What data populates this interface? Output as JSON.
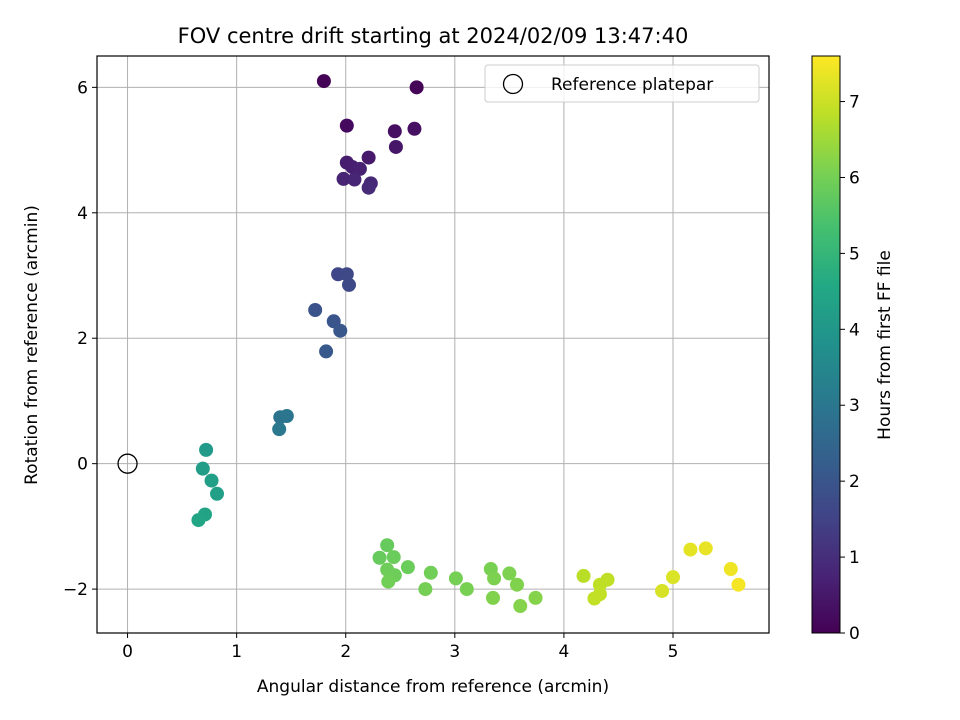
{
  "chart_data": {
    "type": "scatter",
    "title": "FOV centre drift starting at 2024/02/09 13:47:40",
    "xlabel": "Angular distance from reference (arcmin)",
    "ylabel": "Rotation from reference (arcmin)",
    "xlim": [
      -0.28,
      5.88
    ],
    "ylim": [
      -2.7,
      6.5
    ],
    "x_ticks": [
      0,
      1,
      2,
      3,
      4,
      5
    ],
    "y_ticks": [
      -2,
      0,
      2,
      4,
      6
    ],
    "x_tick_labels": [
      "0",
      "1",
      "2",
      "3",
      "4",
      "5"
    ],
    "y_tick_labels": [
      "−2",
      "0",
      "2",
      "4",
      "6"
    ],
    "grid": true,
    "legend_position": "top-right",
    "legend": [
      {
        "label": "Reference platepar",
        "marker": "open-circle"
      }
    ],
    "reference_point": {
      "x": 0,
      "y": 0
    },
    "colorbar": {
      "label": "Hours from first FF file",
      "colormap": "viridis",
      "range": [
        0,
        7.6
      ],
      "ticks": [
        0,
        1,
        2,
        3,
        4,
        5,
        6,
        7
      ],
      "tick_labels": [
        "0",
        "1",
        "2",
        "3",
        "4",
        "5",
        "6",
        "7"
      ]
    },
    "points": [
      {
        "x": 1.8,
        "y": 6.1,
        "t": 0.05
      },
      {
        "x": 2.65,
        "y": 6.0,
        "t": 0.1
      },
      {
        "x": 2.01,
        "y": 5.39,
        "t": 0.2
      },
      {
        "x": 2.45,
        "y": 5.3,
        "t": 0.3
      },
      {
        "x": 2.63,
        "y": 5.34,
        "t": 0.35
      },
      {
        "x": 2.46,
        "y": 5.05,
        "t": 0.45
      },
      {
        "x": 2.21,
        "y": 4.88,
        "t": 0.55
      },
      {
        "x": 2.01,
        "y": 4.8,
        "t": 0.6
      },
      {
        "x": 2.06,
        "y": 4.73,
        "t": 0.65
      },
      {
        "x": 2.13,
        "y": 4.7,
        "t": 0.7
      },
      {
        "x": 1.98,
        "y": 4.54,
        "t": 0.75
      },
      {
        "x": 2.08,
        "y": 4.53,
        "t": 0.8
      },
      {
        "x": 2.23,
        "y": 4.47,
        "t": 0.85
      },
      {
        "x": 2.21,
        "y": 4.4,
        "t": 0.9
      },
      {
        "x": 1.93,
        "y": 3.02,
        "t": 1.6
      },
      {
        "x": 2.01,
        "y": 3.02,
        "t": 1.65
      },
      {
        "x": 2.03,
        "y": 2.85,
        "t": 1.7
      },
      {
        "x": 1.72,
        "y": 2.45,
        "t": 1.95
      },
      {
        "x": 1.89,
        "y": 2.27,
        "t": 2.0
      },
      {
        "x": 1.95,
        "y": 2.12,
        "t": 2.05
      },
      {
        "x": 1.82,
        "y": 1.79,
        "t": 2.1
      },
      {
        "x": 1.4,
        "y": 0.74,
        "t": 2.9
      },
      {
        "x": 1.46,
        "y": 0.76,
        "t": 2.95
      },
      {
        "x": 1.39,
        "y": 0.55,
        "t": 3.0
      },
      {
        "x": 0.72,
        "y": 0.22,
        "t": 4.1
      },
      {
        "x": 0.69,
        "y": -0.08,
        "t": 4.2
      },
      {
        "x": 0.77,
        "y": -0.27,
        "t": 4.25
      },
      {
        "x": 0.82,
        "y": -0.48,
        "t": 4.3
      },
      {
        "x": 0.71,
        "y": -0.81,
        "t": 4.4
      },
      {
        "x": 0.65,
        "y": -0.9,
        "t": 4.45
      },
      {
        "x": 2.38,
        "y": -1.3,
        "t": 5.8
      },
      {
        "x": 2.31,
        "y": -1.5,
        "t": 5.8
      },
      {
        "x": 2.44,
        "y": -1.49,
        "t": 5.85
      },
      {
        "x": 2.57,
        "y": -1.65,
        "t": 5.85
      },
      {
        "x": 2.38,
        "y": -1.69,
        "t": 5.9
      },
      {
        "x": 2.45,
        "y": -1.78,
        "t": 5.9
      },
      {
        "x": 2.78,
        "y": -1.74,
        "t": 5.95
      },
      {
        "x": 2.39,
        "y": -1.88,
        "t": 5.95
      },
      {
        "x": 2.73,
        "y": -2.0,
        "t": 6.0
      },
      {
        "x": 3.01,
        "y": -1.83,
        "t": 6.0
      },
      {
        "x": 3.11,
        "y": -2.0,
        "t": 6.05
      },
      {
        "x": 3.33,
        "y": -1.68,
        "t": 6.05
      },
      {
        "x": 3.36,
        "y": -1.83,
        "t": 6.1
      },
      {
        "x": 3.5,
        "y": -1.75,
        "t": 6.1
      },
      {
        "x": 3.57,
        "y": -1.93,
        "t": 6.15
      },
      {
        "x": 3.35,
        "y": -2.14,
        "t": 6.15
      },
      {
        "x": 3.74,
        "y": -2.14,
        "t": 6.2
      },
      {
        "x": 3.6,
        "y": -2.27,
        "t": 6.2
      },
      {
        "x": 4.18,
        "y": -1.79,
        "t": 6.8
      },
      {
        "x": 4.33,
        "y": -1.93,
        "t": 6.85
      },
      {
        "x": 4.4,
        "y": -1.85,
        "t": 6.85
      },
      {
        "x": 4.33,
        "y": -2.08,
        "t": 6.9
      },
      {
        "x": 4.28,
        "y": -2.15,
        "t": 6.9
      },
      {
        "x": 4.9,
        "y": -2.03,
        "t": 7.15
      },
      {
        "x": 5.0,
        "y": -1.81,
        "t": 7.2
      },
      {
        "x": 5.16,
        "y": -1.37,
        "t": 7.3
      },
      {
        "x": 5.3,
        "y": -1.35,
        "t": 7.35
      },
      {
        "x": 5.53,
        "y": -1.68,
        "t": 7.45
      },
      {
        "x": 5.6,
        "y": -1.93,
        "t": 7.5
      }
    ]
  }
}
